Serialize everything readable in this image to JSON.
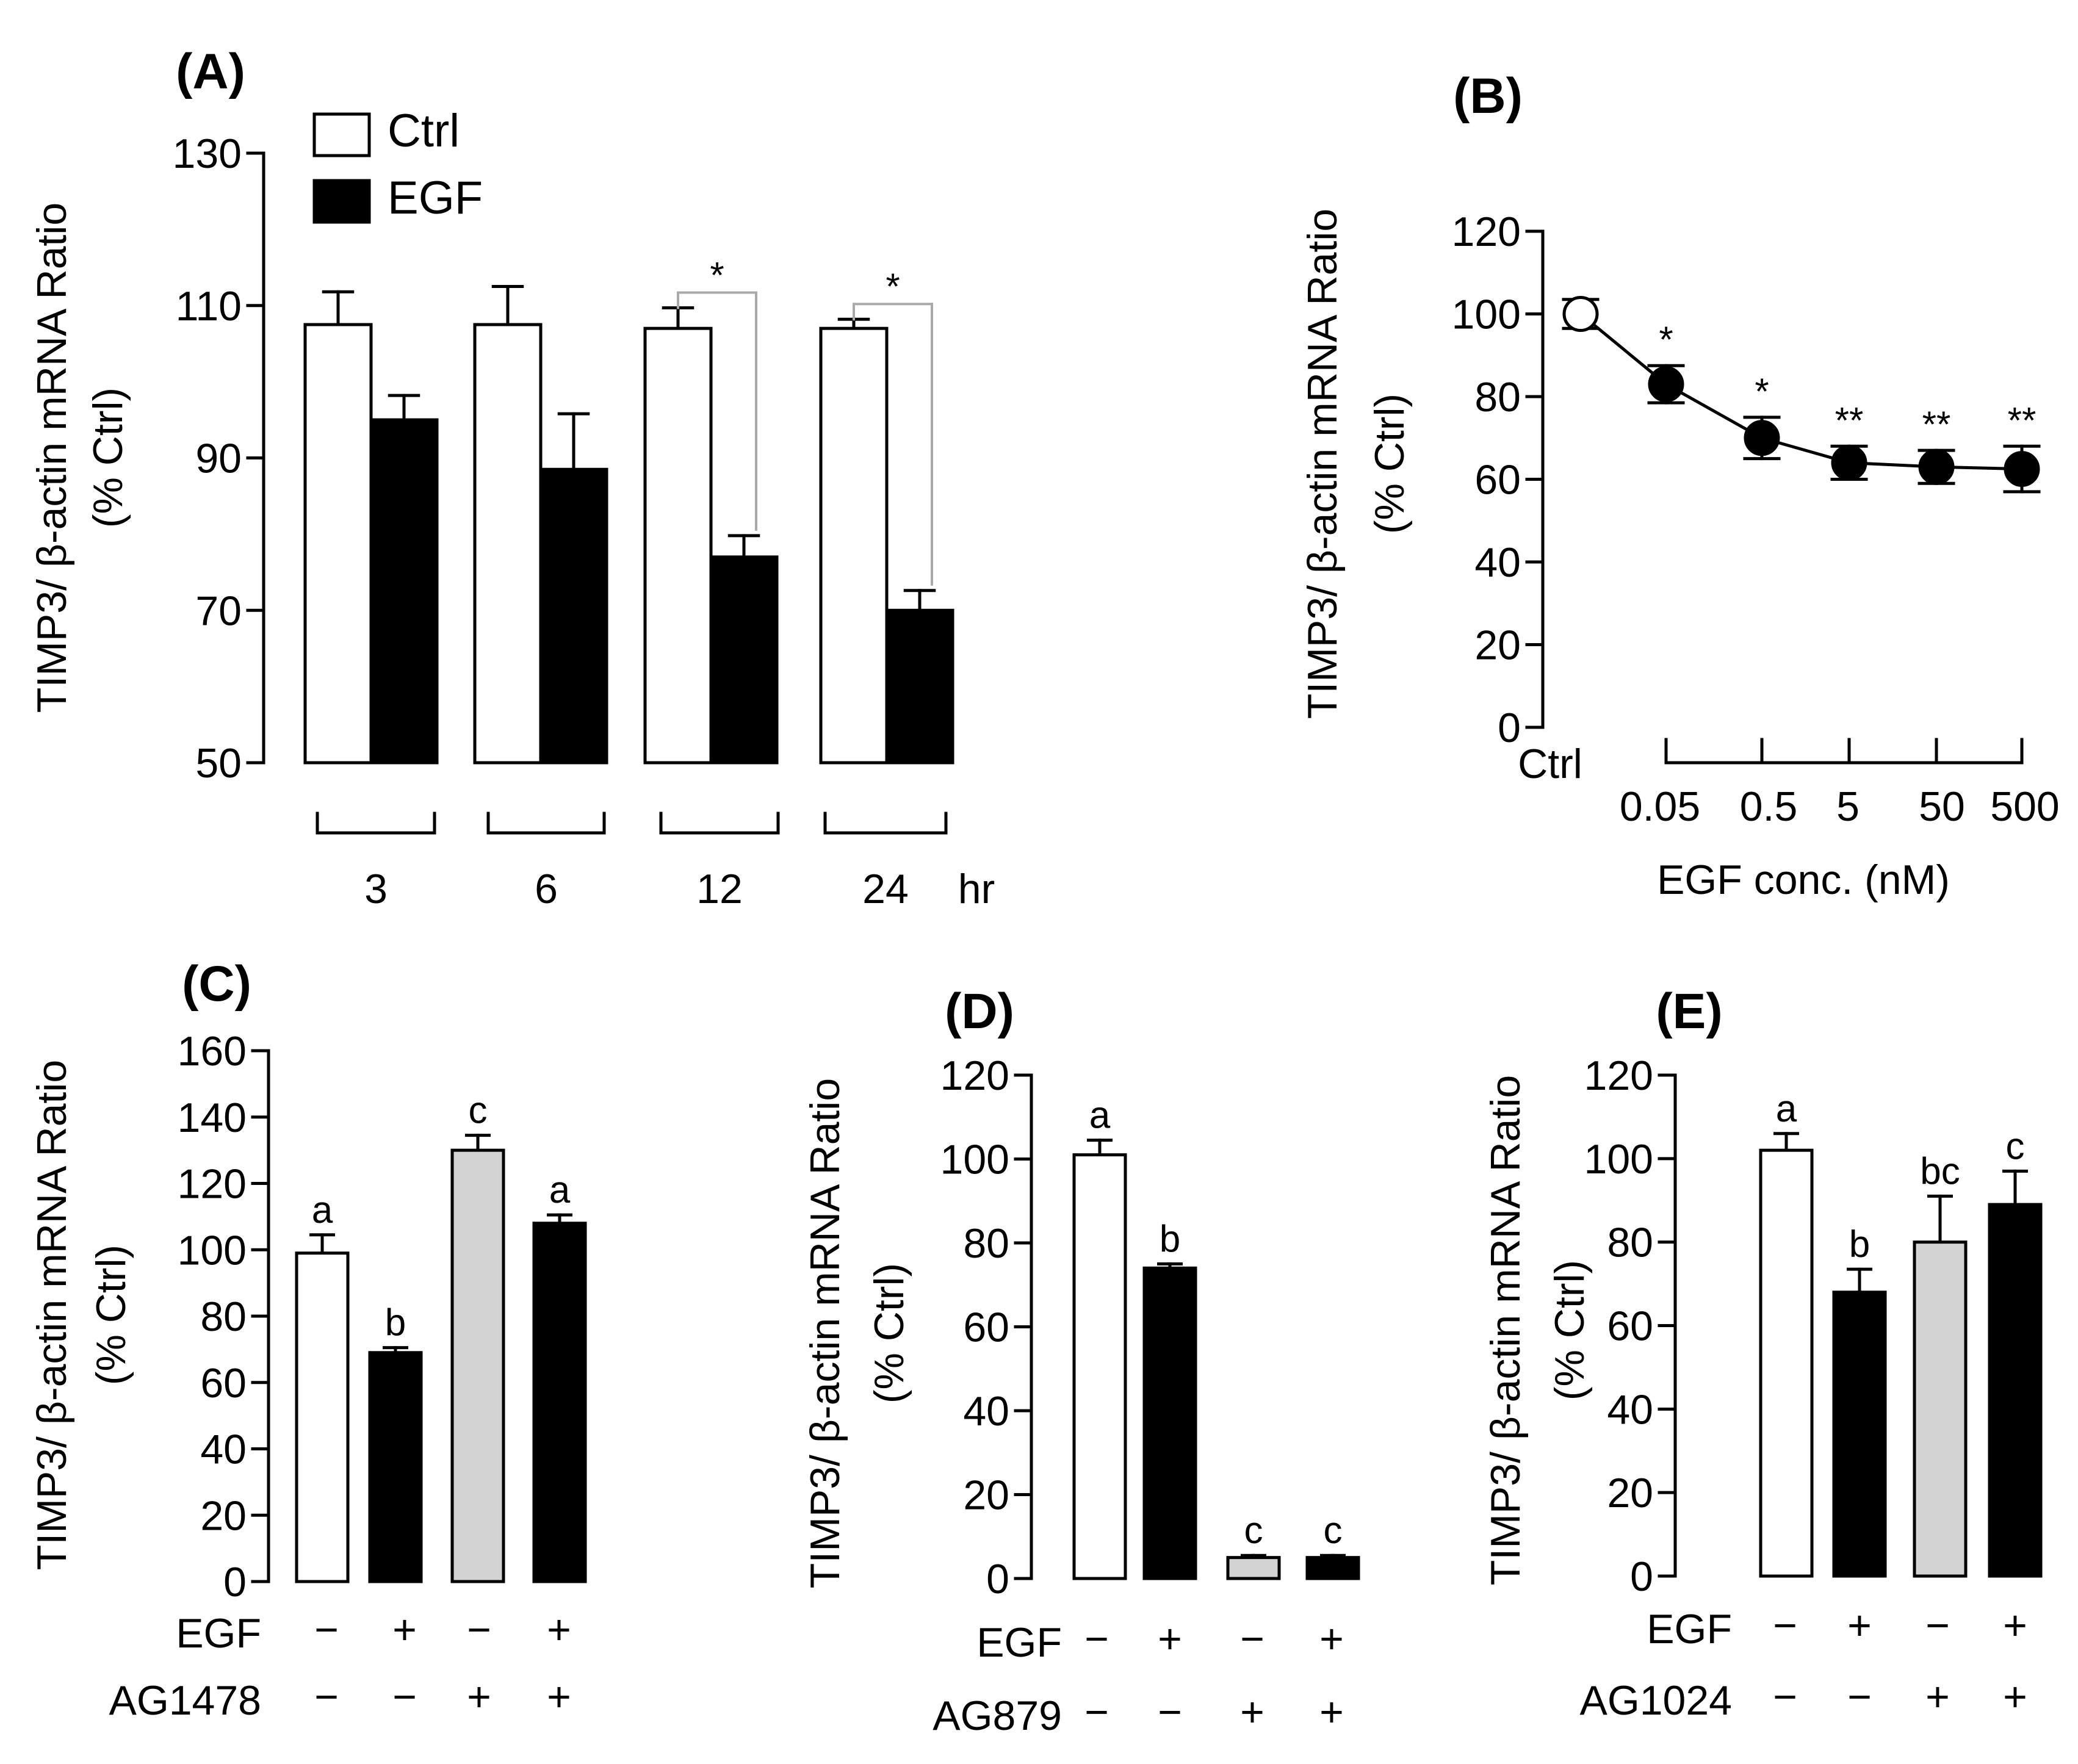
{
  "chart_data": [
    {
      "id": "A",
      "panel_label": "(A)",
      "type": "bar",
      "ylabel_lines": [
        "TIMP3/ β-actin mRNA Ratio",
        "(% Ctrl)"
      ],
      "ylim": [
        50,
        130
      ],
      "yticks": [
        50,
        70,
        90,
        110,
        130
      ],
      "categories": [
        "3",
        "6",
        "12",
        "24"
      ],
      "x_unit": "hr",
      "legend": {
        "position": "top-left",
        "entries": [
          "Ctrl",
          "EGF"
        ]
      },
      "series": [
        {
          "name": "Ctrl",
          "color": "#ffffff",
          "values": [
            107.5,
            107.5,
            107,
            107
          ],
          "errors": [
            4.3,
            5.0,
            2.7,
            1.2
          ]
        },
        {
          "name": "EGF",
          "color": "#000000",
          "values": [
            95,
            88.5,
            77,
            70
          ],
          "errors": [
            3.2,
            7.3,
            2.8,
            2.6
          ]
        }
      ],
      "significance": [
        {
          "category": "12",
          "mark": "*"
        },
        {
          "category": "24",
          "mark": "*"
        }
      ]
    },
    {
      "id": "B",
      "panel_label": "(B)",
      "type": "line",
      "ylabel_lines": [
        "TIMP3/ β-actin mRNA Ratio",
        "(% Ctrl)"
      ],
      "xlabel": "EGF conc. (nM)",
      "ylim": [
        0,
        120
      ],
      "yticks": [
        0,
        20,
        40,
        60,
        80,
        100,
        120
      ],
      "x": [
        "Ctrl",
        "0.05",
        "0.5",
        "5",
        "50",
        "500"
      ],
      "y": [
        100,
        83,
        70,
        64,
        63,
        62.5
      ],
      "errors": [
        3.5,
        4.5,
        5,
        4,
        4,
        5.5
      ],
      "marker_fill": [
        "#ffffff",
        "#000000",
        "#000000",
        "#000000",
        "#000000",
        "#000000"
      ],
      "significance": [
        "",
        "*",
        "*",
        "**",
        "**",
        "**"
      ]
    },
    {
      "id": "C",
      "panel_label": "(C)",
      "type": "bar",
      "ylabel_lines": [
        "TIMP3/ β-actin mRNA Ratio",
        "(% Ctrl)"
      ],
      "ylim": [
        0,
        160
      ],
      "yticks": [
        0,
        20,
        40,
        60,
        80,
        100,
        120,
        140,
        160
      ],
      "values": [
        99,
        69,
        130,
        108
      ],
      "errors": [
        5.5,
        1.5,
        4.5,
        2.5
      ],
      "colors": [
        "#ffffff",
        "#000000",
        "#d3d3d3",
        "#000000"
      ],
      "letters": [
        "a",
        "b",
        "c",
        "a"
      ],
      "conditions": [
        {
          "name": "EGF",
          "marks": [
            "−",
            "+",
            "−",
            "+"
          ]
        },
        {
          "name": "AG1478",
          "marks": [
            "−",
            "−",
            "+",
            "+"
          ]
        }
      ]
    },
    {
      "id": "D",
      "panel_label": "(D)",
      "type": "bar",
      "ylabel_lines": [
        "TIMP3/ β-actin mRNA Ratio",
        "(% Ctrl)"
      ],
      "ylim": [
        0,
        120
      ],
      "yticks": [
        0,
        20,
        40,
        60,
        80,
        100,
        120
      ],
      "values": [
        101,
        74,
        5,
        5
      ],
      "errors": [
        3.5,
        1,
        0.5,
        0.5
      ],
      "colors": [
        "#ffffff",
        "#000000",
        "#d3d3d3",
        "#000000"
      ],
      "letters": [
        "a",
        "b",
        "c",
        "c"
      ],
      "conditions": [
        {
          "name": "EGF",
          "marks": [
            "−",
            "+",
            "−",
            "+"
          ]
        },
        {
          "name": "AG879",
          "marks": [
            "−",
            "−",
            "+",
            "+"
          ]
        }
      ]
    },
    {
      "id": "E",
      "panel_label": "(E)",
      "type": "bar",
      "ylabel_lines": [
        "TIMP3/ β-actin mRNA Ratio",
        "(% Ctrl)"
      ],
      "ylim": [
        0,
        120
      ],
      "yticks": [
        0,
        20,
        40,
        60,
        80,
        100,
        120
      ],
      "values": [
        102,
        68,
        80,
        89
      ],
      "errors": [
        4,
        5.5,
        11,
        8
      ],
      "colors": [
        "#ffffff",
        "#000000",
        "#d3d3d3",
        "#000000"
      ],
      "letters": [
        "a",
        "b",
        "bc",
        "c"
      ],
      "conditions": [
        {
          "name": "EGF",
          "marks": [
            "−",
            "+",
            "−",
            "+"
          ]
        },
        {
          "name": "AG1024",
          "marks": [
            "−",
            "−",
            "+",
            "+"
          ]
        }
      ]
    }
  ]
}
